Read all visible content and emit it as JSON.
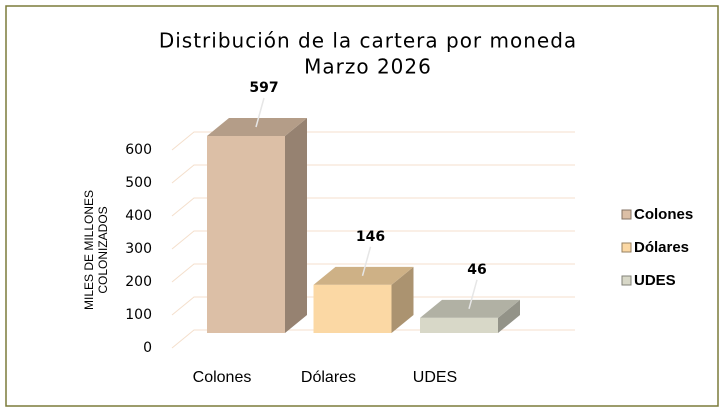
{
  "chart_data": {
    "type": "bar3d",
    "title": "Distribución de la cartera por moneda",
    "subtitle": "Marzo 2026",
    "y_label": [
      "MILES DE MILLONES",
      "COLONIZADOS"
    ],
    "categories": [
      "Colones",
      "Dólares",
      "UDES"
    ],
    "values": [
      597,
      146,
      46
    ],
    "colors": [
      "#dcbfa6",
      "#fbd8a4",
      "#d8d8c8"
    ],
    "ylim": [
      0,
      600
    ],
    "yticks": [
      0,
      100,
      200,
      300,
      400,
      500,
      600
    ],
    "grid": true,
    "legend": "right"
  }
}
